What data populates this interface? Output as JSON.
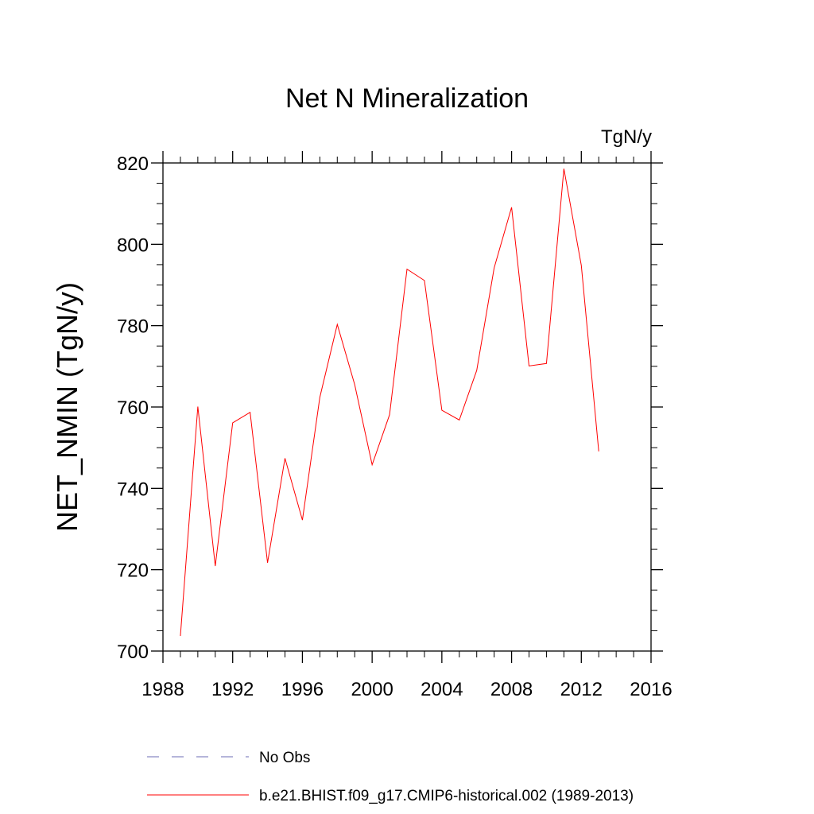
{
  "chart_data": {
    "type": "line",
    "title": "Net N Mineralization",
    "units_label": "TgN/y",
    "xlabel": "",
    "ylabel": "NET_NMIN  (TgN/y)",
    "xlim": [
      1988,
      2016
    ],
    "ylim": [
      700,
      820
    ],
    "x_ticks": [
      1988,
      1992,
      1996,
      2000,
      2004,
      2008,
      2012,
      2016
    ],
    "y_ticks": [
      700,
      720,
      740,
      760,
      780,
      800,
      820
    ],
    "x_minor_step": 1,
    "y_minor_step": 5,
    "grid": false,
    "legend_position": "bottom",
    "series": [
      {
        "name": "No Obs",
        "color": "#6b6bb5",
        "style": "dashed",
        "x": [],
        "y": []
      },
      {
        "name": "b.e21.BHIST.f09_g17.CMIP6-historical.002 (1989-2013)",
        "color": "#ff0000",
        "style": "solid",
        "x": [
          1989,
          1990,
          1991,
          1992,
          1993,
          1994,
          1995,
          1996,
          1997,
          1998,
          1999,
          2000,
          2001,
          2002,
          2003,
          2004,
          2005,
          2006,
          2007,
          2008,
          2009,
          2010,
          2011,
          2012,
          2013
        ],
        "y": [
          703.7,
          760.1,
          720.9,
          756.1,
          758.7,
          721.7,
          747.4,
          732.2,
          762.4,
          780.3,
          765.5,
          745.8,
          758.1,
          793.9,
          791.1,
          759.2,
          756.8,
          769.0,
          794.2,
          809.1,
          770.1,
          770.7,
          818.6,
          794.8,
          749.1
        ]
      }
    ]
  }
}
